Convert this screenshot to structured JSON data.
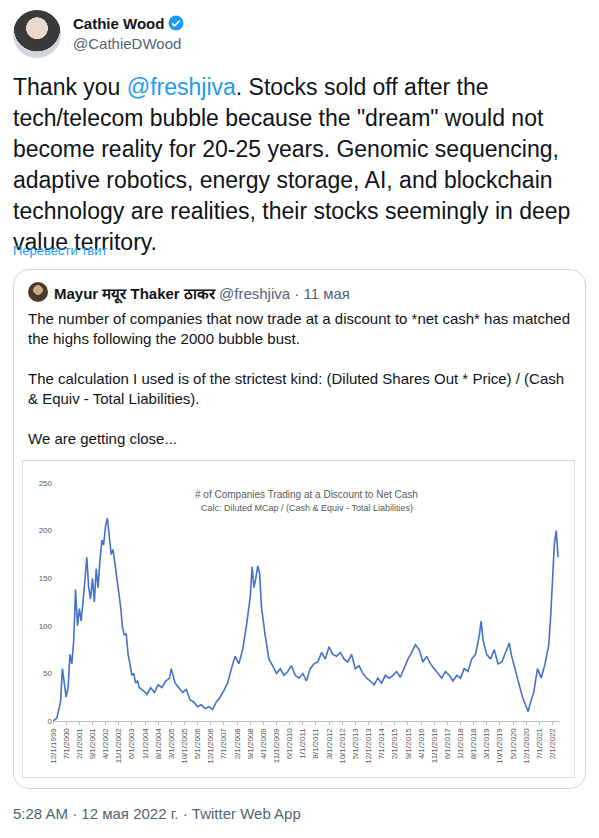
{
  "tweet": {
    "name": "Cathie Wood",
    "handle": "@CathieDWood",
    "text": "Thank you @freshjiva. Stocks sold off after the tech/telecom bubble because the \"dream\" would not become reality for 20-25 years. Genomic sequencing, adaptive robotics, energy storage, AI, and blockchain technology are realities, their stocks seemingly in deep value territory.",
    "translate": "Перевести твит",
    "footer": "5:28 AM · 12 мая 2022 г. · Twitter Web App"
  },
  "quote": {
    "name": "Mayur मयूर Thaker ठाकर",
    "byline": "@freshjiva · 11 мая",
    "paragraphs": [
      "The number of companies that now trade at a discount to *net cash* has matched the highs following the 2000 bubble bust.",
      "The calculation I used is of the strictest kind: (Diluted Shares Out * Price) / (Cash & Equiv - Total Liabilities).",
      "We are getting close..."
    ]
  },
  "chart_data": {
    "type": "line",
    "title": "# of Companies Trading at a Discount to Net Cash",
    "subtitle": "Calc: Diluted MCap / (Cash & Equiv - Total Liabilities)",
    "x": [
      "1999-12-01",
      "2000-02-01",
      "2000-04-01",
      "2000-05-01",
      "2000-06-01",
      "2000-07-01",
      "2000-08-01",
      "2000-09-01",
      "2000-10-01",
      "2000-11-01",
      "2000-12-01",
      "2001-01-01",
      "2001-02-01",
      "2001-03-01",
      "2001-04-01",
      "2001-05-01",
      "2001-06-01",
      "2001-07-01",
      "2001-08-01",
      "2001-09-01",
      "2001-10-01",
      "2001-11-01",
      "2001-12-01",
      "2002-01-01",
      "2002-02-01",
      "2002-03-01",
      "2002-04-01",
      "2002-05-01",
      "2002-06-01",
      "2002-07-01",
      "2002-08-01",
      "2002-09-01",
      "2002-10-01",
      "2002-11-01",
      "2002-12-01",
      "2003-01-01",
      "2003-02-01",
      "2003-03-01",
      "2003-04-01",
      "2003-05-01",
      "2003-06-01",
      "2003-07-01",
      "2003-08-01",
      "2003-09-01",
      "2003-10-01",
      "2003-12-01",
      "2004-02-01",
      "2004-04-01",
      "2004-06-01",
      "2004-08-01",
      "2004-10-01",
      "2004-12-01",
      "2005-02-01",
      "2005-03-01",
      "2005-05-01",
      "2005-07-01",
      "2005-09-01",
      "2005-11-01",
      "2006-01-01",
      "2006-03-01",
      "2006-05-01",
      "2006-07-01",
      "2006-09-01",
      "2006-11-01",
      "2007-01-01",
      "2007-03-01",
      "2007-05-01",
      "2007-07-01",
      "2007-09-01",
      "2007-11-01",
      "2008-01-01",
      "2008-03-01",
      "2008-05-01",
      "2008-07-01",
      "2008-09-01",
      "2008-10-01",
      "2008-11-01",
      "2008-12-01",
      "2009-01-01",
      "2009-02-01",
      "2009-03-01",
      "2009-05-01",
      "2009-07-01",
      "2009-09-01",
      "2009-11-01",
      "2010-01-01",
      "2010-03-01",
      "2010-05-01",
      "2010-07-01",
      "2010-09-01",
      "2010-11-01",
      "2011-01-01",
      "2011-03-01",
      "2011-05-01",
      "2011-07-01",
      "2011-09-01",
      "2011-11-01",
      "2012-01-01",
      "2012-03-01",
      "2012-05-01",
      "2012-07-01",
      "2012-09-01",
      "2012-11-01",
      "2013-01-01",
      "2013-03-01",
      "2013-05-01",
      "2013-07-01",
      "2013-09-01",
      "2013-11-01",
      "2014-01-01",
      "2014-03-01",
      "2014-05-01",
      "2014-07-01",
      "2014-09-01",
      "2014-11-01",
      "2015-01-01",
      "2015-03-01",
      "2015-05-01",
      "2015-07-01",
      "2015-09-01",
      "2015-11-01",
      "2016-01-01",
      "2016-03-01",
      "2016-05-01",
      "2016-07-01",
      "2016-09-01",
      "2016-11-01",
      "2017-01-01",
      "2017-03-01",
      "2017-05-01",
      "2017-07-01",
      "2017-09-01",
      "2017-11-01",
      "2018-01-01",
      "2018-03-01",
      "2018-05-01",
      "2018-07-01",
      "2018-09-01",
      "2018-11-01",
      "2018-12-01",
      "2019-01-01",
      "2019-03-01",
      "2019-05-01",
      "2019-07-01",
      "2019-09-01",
      "2019-11-01",
      "2020-01-01",
      "2020-03-01",
      "2020-04-01",
      "2020-06-01",
      "2020-08-01",
      "2020-10-01",
      "2020-12-01",
      "2021-01-01",
      "2021-02-01",
      "2021-04-01",
      "2021-06-01",
      "2021-08-01",
      "2021-10-01",
      "2021-12-01",
      "2022-01-01",
      "2022-02-01",
      "2022-03-01",
      "2022-04-01",
      "2022-05-01"
    ],
    "values": [
      0,
      3,
      20,
      55,
      40,
      25,
      35,
      70,
      60,
      85,
      138,
      100,
      118,
      105,
      125,
      150,
      172,
      140,
      128,
      150,
      125,
      160,
      140,
      170,
      190,
      185,
      205,
      213,
      195,
      175,
      180,
      165,
      145,
      135,
      120,
      98,
      90,
      92,
      70,
      60,
      48,
      50,
      40,
      42,
      35,
      32,
      28,
      35,
      30,
      38,
      35,
      42,
      45,
      55,
      40,
      35,
      30,
      33,
      22,
      20,
      15,
      17,
      13,
      15,
      12,
      20,
      25,
      32,
      40,
      55,
      68,
      60,
      75,
      100,
      130,
      162,
      140,
      150,
      163,
      155,
      120,
      90,
      65,
      58,
      50,
      55,
      48,
      52,
      58,
      48,
      45,
      50,
      42,
      55,
      60,
      62,
      72,
      65,
      78,
      70,
      68,
      72,
      65,
      62,
      70,
      55,
      58,
      50,
      45,
      42,
      38,
      45,
      40,
      48,
      45,
      48,
      52,
      46,
      55,
      65,
      72,
      80,
      75,
      62,
      68,
      60,
      55,
      50,
      45,
      52,
      48,
      42,
      48,
      45,
      55,
      52,
      65,
      70,
      90,
      105,
      85,
      70,
      65,
      75,
      60,
      62,
      72,
      82,
      70,
      55,
      40,
      25,
      15,
      10,
      18,
      30,
      55,
      45,
      60,
      80,
      110,
      150,
      185,
      200,
      172
    ],
    "color": "#4472c4",
    "xlim": [
      "1999-12-01",
      "2022-06-01"
    ],
    "ylim": [
      0,
      250
    ],
    "yticks": [
      0,
      50,
      100,
      150,
      200,
      250
    ],
    "xticks": [
      {
        "value": "1999-12-01",
        "label": "12/1/1999"
      },
      {
        "value": "2000-07-01",
        "label": "7/1/2000"
      },
      {
        "value": "2001-02-01",
        "label": "2/1/2001"
      },
      {
        "value": "2001-09-01",
        "label": "9/1/2001"
      },
      {
        "value": "2002-04-01",
        "label": "4/1/2002"
      },
      {
        "value": "2002-11-01",
        "label": "11/1/2002"
      },
      {
        "value": "2003-06-01",
        "label": "6/1/2003"
      },
      {
        "value": "2004-01-01",
        "label": "1/1/2004"
      },
      {
        "value": "2004-08-01",
        "label": "8/1/2004"
      },
      {
        "value": "2005-03-01",
        "label": "3/1/2005"
      },
      {
        "value": "2005-10-01",
        "label": "10/1/2005"
      },
      {
        "value": "2006-05-01",
        "label": "5/1/2006"
      },
      {
        "value": "2006-12-01",
        "label": "12/1/2006"
      },
      {
        "value": "2007-07-01",
        "label": "7/1/2007"
      },
      {
        "value": "2008-02-01",
        "label": "2/1/2008"
      },
      {
        "value": "2008-09-01",
        "label": "9/1/2008"
      },
      {
        "value": "2009-04-01",
        "label": "4/1/2009"
      },
      {
        "value": "2009-11-01",
        "label": "11/1/2009"
      },
      {
        "value": "2010-06-01",
        "label": "6/1/2010"
      },
      {
        "value": "2011-01-01",
        "label": "1/1/2011"
      },
      {
        "value": "2011-08-01",
        "label": "8/1/2011"
      },
      {
        "value": "2012-03-01",
        "label": "3/1/2012"
      },
      {
        "value": "2012-10-01",
        "label": "10/1/2012"
      },
      {
        "value": "2013-05-01",
        "label": "5/1/2013"
      },
      {
        "value": "2013-12-01",
        "label": "12/1/2013"
      },
      {
        "value": "2014-07-01",
        "label": "7/1/2014"
      },
      {
        "value": "2015-02-01",
        "label": "2/1/2015"
      },
      {
        "value": "2015-09-01",
        "label": "9/1/2015"
      },
      {
        "value": "2016-04-01",
        "label": "4/1/2016"
      },
      {
        "value": "2016-11-01",
        "label": "11/1/2016"
      },
      {
        "value": "2017-06-01",
        "label": "6/1/2017"
      },
      {
        "value": "2018-01-01",
        "label": "1/1/2018"
      },
      {
        "value": "2018-08-01",
        "label": "8/1/2018"
      },
      {
        "value": "2019-03-01",
        "label": "3/1/2019"
      },
      {
        "value": "2019-10-01",
        "label": "10/1/2019"
      },
      {
        "value": "2020-05-01",
        "label": "5/1/2020"
      },
      {
        "value": "2020-12-01",
        "label": "12/1/2020"
      },
      {
        "value": "2021-07-01",
        "label": "7/1/2021"
      },
      {
        "value": "2022-02-01",
        "label": "2/1/2022"
      }
    ],
    "grid": false
  }
}
